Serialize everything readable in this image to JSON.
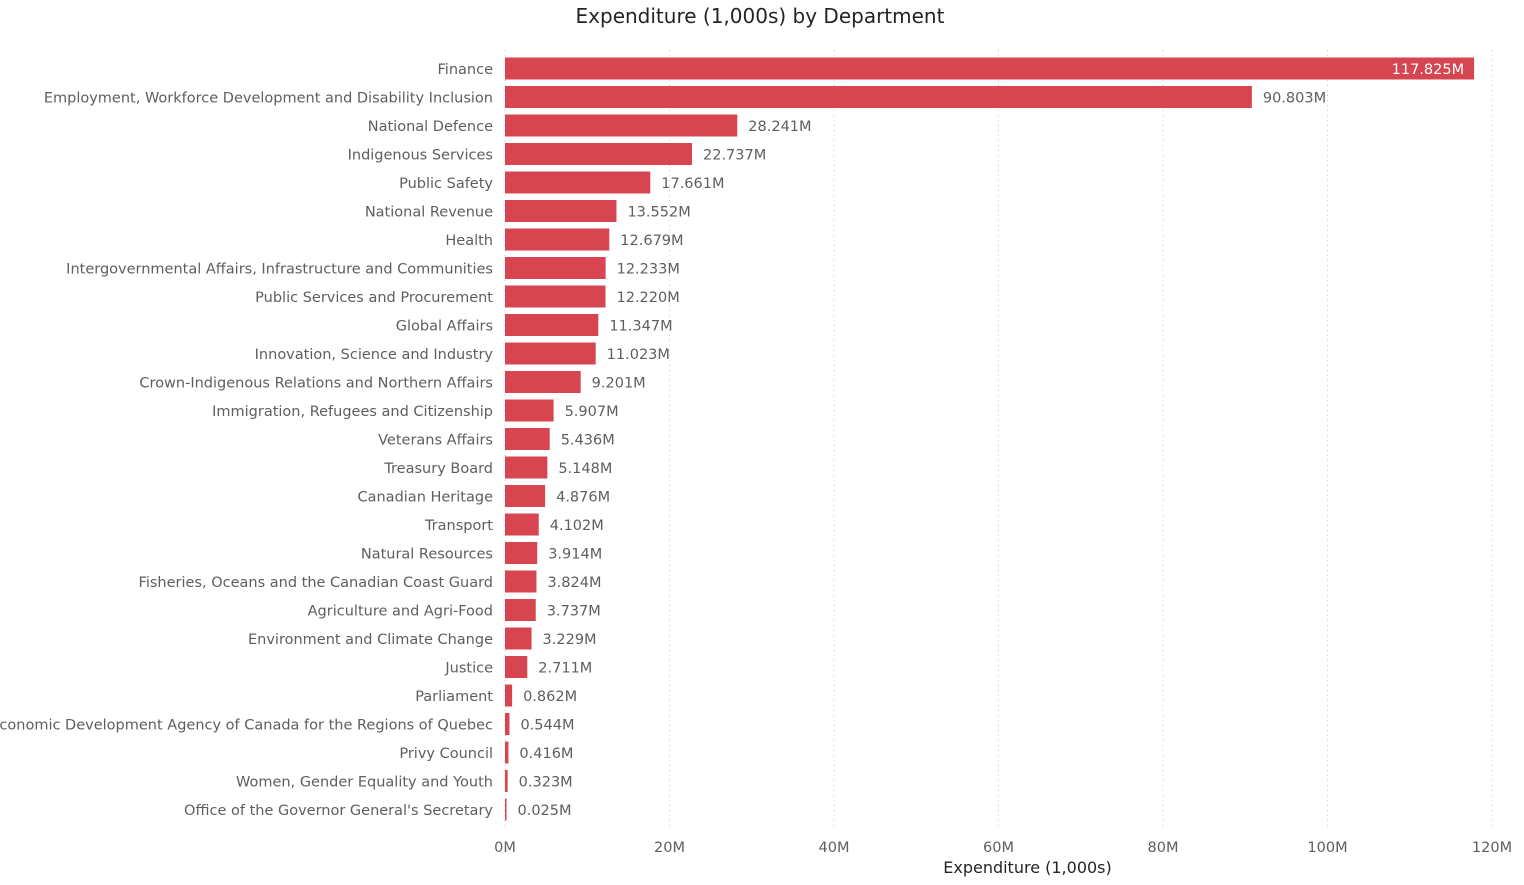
{
  "chart_data": {
    "type": "bar",
    "orientation": "horizontal",
    "title": "Expenditure (1,000s) by Department",
    "xlabel": "Expenditure (1,000s)",
    "ylabel": "",
    "xlim": [
      0,
      120
    ],
    "x_unit_suffix": "M",
    "ticks": [
      "0M",
      "20M",
      "40M",
      "60M",
      "80M",
      "100M",
      "120M"
    ],
    "grid": true,
    "bar_color": "#d64550",
    "categories": [
      "Finance",
      "Employment, Workforce Development and Disability Inclusion",
      "National Defence",
      "Indigenous Services",
      "Public Safety",
      "National Revenue",
      "Health",
      "Intergovernmental Affairs, Infrastructure and Communities",
      "Public Services and Procurement",
      "Global Affairs",
      "Innovation, Science and Industry",
      "Crown-Indigenous Relations and Northern Affairs",
      "Immigration, Refugees and Citizenship",
      "Veterans Affairs",
      "Treasury Board",
      "Canadian Heritage",
      "Transport",
      "Natural Resources",
      "Fisheries, Oceans and the Canadian Coast Guard",
      "Agriculture and Agri-Food",
      "Environment and Climate Change",
      "Justice",
      "Parliament",
      "Economic Development Agency of Canada for the Regions of Quebec",
      "Privy Council",
      "Women, Gender Equality and Youth",
      "Office of the Governor General's Secretary"
    ],
    "values": [
      117.825,
      90.803,
      28.241,
      22.737,
      17.661,
      13.552,
      12.679,
      12.233,
      12.22,
      11.347,
      11.023,
      9.201,
      5.907,
      5.436,
      5.148,
      4.876,
      4.102,
      3.914,
      3.824,
      3.737,
      3.229,
      2.711,
      0.862,
      0.544,
      0.416,
      0.323,
      0.025
    ],
    "value_labels": [
      "117.825M",
      "90.803M",
      "28.241M",
      "22.737M",
      "17.661M",
      "13.552M",
      "12.679M",
      "12.233M",
      "12.220M",
      "11.347M",
      "11.023M",
      "9.201M",
      "5.907M",
      "5.436M",
      "5.148M",
      "4.876M",
      "4.102M",
      "3.914M",
      "3.824M",
      "3.737M",
      "3.229M",
      "2.711M",
      "0.862M",
      "0.544M",
      "0.416M",
      "0.323M",
      "0.025M"
    ]
  }
}
